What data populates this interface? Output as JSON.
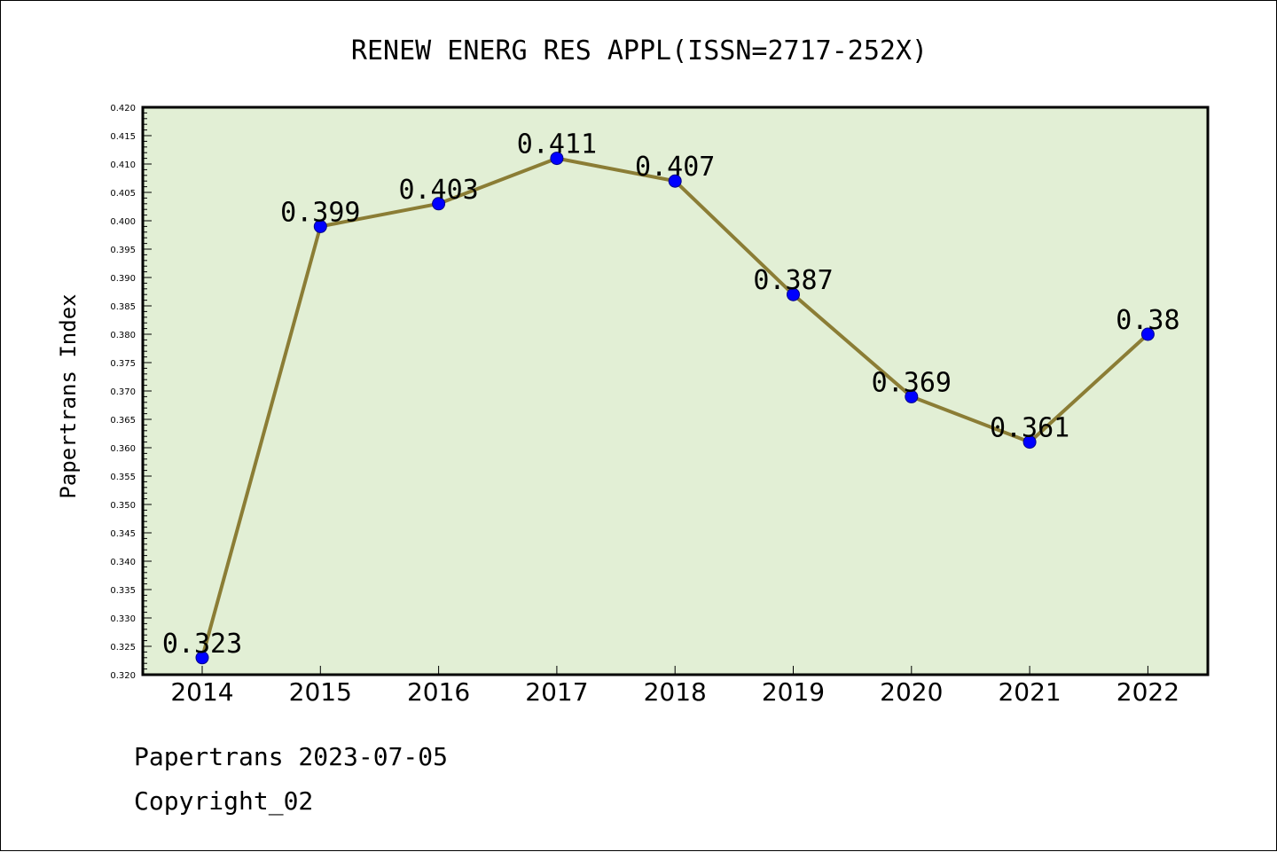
{
  "chart_data": {
    "type": "line",
    "title": "RENEW ENERG RES APPL(ISSN=2717-252X)",
    "xlabel": "",
    "ylabel": "Papertrans Index",
    "categories": [
      "2014",
      "2015",
      "2016",
      "2017",
      "2018",
      "2019",
      "2020",
      "2021",
      "2022"
    ],
    "series": [
      {
        "values": [
          0.323,
          0.399,
          0.403,
          0.411,
          0.407,
          0.387,
          0.369,
          0.361,
          0.38
        ],
        "labels": [
          "0.323",
          "0.399",
          "0.403",
          "0.411",
          "0.407",
          "0.387",
          "0.369",
          "0.361",
          "0.38"
        ]
      }
    ],
    "ylim": [
      0.32,
      0.42
    ],
    "yticks": [
      "0.320",
      "0.325",
      "0.330",
      "0.335",
      "0.340",
      "0.345",
      "0.350",
      "0.355",
      "0.360",
      "0.365",
      "0.370",
      "0.375",
      "0.380",
      "0.385",
      "0.390",
      "0.395",
      "0.400",
      "0.405",
      "0.410",
      "0.415",
      "0.420"
    ],
    "grid": false,
    "legend": "none",
    "colors": {
      "plot_background": "#e2efd5",
      "line": "#8b7d35",
      "marker": "#0000ff",
      "marker_edge": "#00008b"
    }
  },
  "footer": {
    "line1": "Papertrans 2023-07-05",
    "line2": "Copyright_02"
  }
}
